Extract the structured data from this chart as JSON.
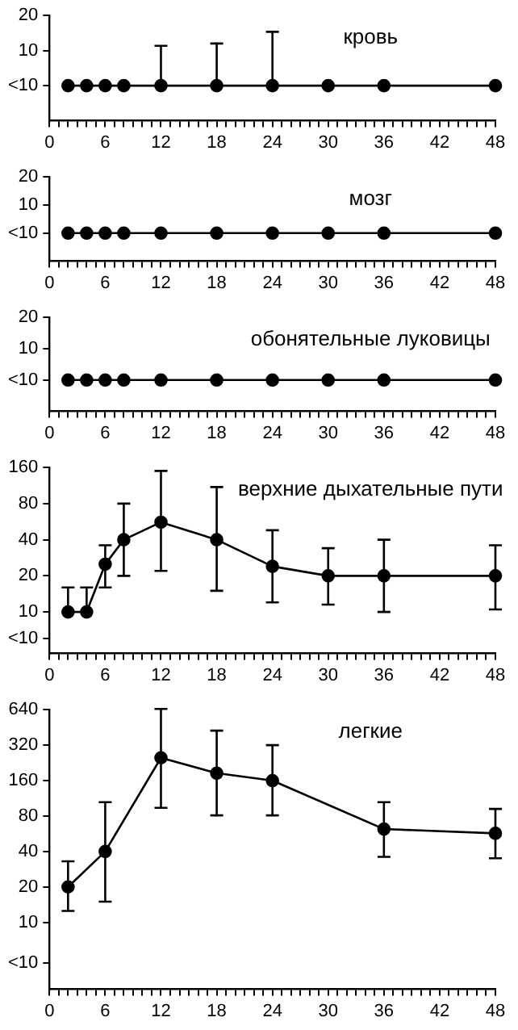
{
  "chart_data": [
    {
      "type": "line",
      "title": "кровь",
      "marker": "circle",
      "log": "y",
      "grid": false,
      "xlim": [
        0,
        48
      ],
      "ylim": [
        2.5,
        20
      ],
      "yticks": [
        {
          "value": 5,
          "label": "<10"
        },
        10,
        20
      ],
      "xticks": [
        0,
        {
          "value": 1,
          "label": null
        },
        {
          "value": 2,
          "label": null
        },
        {
          "value": 3,
          "label": null
        },
        {
          "value": 4,
          "label": null
        },
        {
          "value": 5,
          "label": null
        },
        6,
        {
          "value": 7,
          "label": null
        },
        {
          "value": 8,
          "label": null
        },
        {
          "value": 9,
          "label": null
        },
        {
          "value": 10,
          "label": null
        },
        {
          "value": 11,
          "label": null
        },
        12,
        {
          "value": 13,
          "label": null
        },
        {
          "value": 14,
          "label": null
        },
        {
          "value": 15,
          "label": null
        },
        {
          "value": 16,
          "label": null
        },
        {
          "value": 17,
          "label": null
        },
        18,
        {
          "value": 19,
          "label": null
        },
        {
          "value": 20,
          "label": null
        },
        {
          "value": 21,
          "label": null
        },
        {
          "value": 22,
          "label": null
        },
        {
          "value": 23,
          "label": null
        },
        24,
        {
          "value": 25,
          "label": null
        },
        {
          "value": 26,
          "label": null
        },
        {
          "value": 27,
          "label": null
        },
        {
          "value": 28,
          "label": null
        },
        {
          "value": 29,
          "label": null
        },
        30,
        {
          "value": 31,
          "label": null
        },
        {
          "value": 32,
          "label": null
        },
        {
          "value": 33,
          "label": null
        },
        {
          "value": 34,
          "label": null
        },
        {
          "value": 35,
          "label": null
        },
        36,
        {
          "value": 37,
          "label": null
        },
        {
          "value": 38,
          "label": null
        },
        {
          "value": 39,
          "label": null
        },
        {
          "value": 40,
          "label": null
        },
        {
          "value": 41,
          "label": null
        },
        42,
        {
          "value": 43,
          "label": null
        },
        {
          "value": 44,
          "label": null
        },
        {
          "value": 45,
          "label": null
        },
        {
          "value": 46,
          "label": null
        },
        {
          "value": 47,
          "label": null
        },
        48
      ],
      "x": [
        2,
        4,
        6,
        8,
        12,
        18,
        24,
        30,
        36,
        48
      ],
      "series": [
        {
          "color": "#000000",
          "values": [
            5,
            5,
            5,
            5,
            5,
            5,
            5,
            5,
            5,
            5
          ],
          "errors": [
            null,
            null,
            null,
            null,
            [
              5,
              11
            ],
            [
              5,
              11.5
            ],
            [
              5,
              14.5
            ],
            null,
            null,
            null
          ]
        }
      ]
    },
    {
      "type": "line",
      "title": "мозг",
      "marker": "circle",
      "log": "y",
      "grid": false,
      "xlim": [
        0,
        48
      ],
      "ylim": [
        2.5,
        20
      ],
      "yticks": [
        {
          "value": 5,
          "label": "<10"
        },
        10,
        20
      ],
      "xticks": [
        0,
        {
          "value": 1,
          "label": null
        },
        {
          "value": 2,
          "label": null
        },
        {
          "value": 3,
          "label": null
        },
        {
          "value": 4,
          "label": null
        },
        {
          "value": 5,
          "label": null
        },
        6,
        {
          "value": 7,
          "label": null
        },
        {
          "value": 8,
          "label": null
        },
        {
          "value": 9,
          "label": null
        },
        {
          "value": 10,
          "label": null
        },
        {
          "value": 11,
          "label": null
        },
        12,
        {
          "value": 13,
          "label": null
        },
        {
          "value": 14,
          "label": null
        },
        {
          "value": 15,
          "label": null
        },
        {
          "value": 16,
          "label": null
        },
        {
          "value": 17,
          "label": null
        },
        18,
        {
          "value": 19,
          "label": null
        },
        {
          "value": 20,
          "label": null
        },
        {
          "value": 21,
          "label": null
        },
        {
          "value": 22,
          "label": null
        },
        {
          "value": 23,
          "label": null
        },
        24,
        {
          "value": 25,
          "label": null
        },
        {
          "value": 26,
          "label": null
        },
        {
          "value": 27,
          "label": null
        },
        {
          "value": 28,
          "label": null
        },
        {
          "value": 29,
          "label": null
        },
        30,
        {
          "value": 31,
          "label": null
        },
        {
          "value": 32,
          "label": null
        },
        {
          "value": 33,
          "label": null
        },
        {
          "value": 34,
          "label": null
        },
        {
          "value": 35,
          "label": null
        },
        36,
        {
          "value": 37,
          "label": null
        },
        {
          "value": 38,
          "label": null
        },
        {
          "value": 39,
          "label": null
        },
        {
          "value": 40,
          "label": null
        },
        {
          "value": 41,
          "label": null
        },
        42,
        {
          "value": 43,
          "label": null
        },
        {
          "value": 44,
          "label": null
        },
        {
          "value": 45,
          "label": null
        },
        {
          "value": 46,
          "label": null
        },
        {
          "value": 47,
          "label": null
        },
        48
      ],
      "x": [
        2,
        4,
        6,
        8,
        12,
        18,
        24,
        30,
        36,
        48
      ],
      "series": [
        {
          "color": "#000000",
          "values": [
            5,
            5,
            5,
            5,
            5,
            5,
            5,
            5,
            5,
            5
          ]
        }
      ]
    },
    {
      "type": "line",
      "title": "обонятельные луковицы",
      "marker": "circle",
      "log": "y",
      "grid": false,
      "xlim": [
        0,
        48
      ],
      "ylim": [
        2.5,
        20
      ],
      "yticks": [
        {
          "value": 5,
          "label": "<10"
        },
        10,
        20
      ],
      "xticks": [
        0,
        {
          "value": 1,
          "label": null
        },
        {
          "value": 2,
          "label": null
        },
        {
          "value": 3,
          "label": null
        },
        {
          "value": 4,
          "label": null
        },
        {
          "value": 5,
          "label": null
        },
        6,
        {
          "value": 7,
          "label": null
        },
        {
          "value": 8,
          "label": null
        },
        {
          "value": 9,
          "label": null
        },
        {
          "value": 10,
          "label": null
        },
        {
          "value": 11,
          "label": null
        },
        12,
        {
          "value": 13,
          "label": null
        },
        {
          "value": 14,
          "label": null
        },
        {
          "value": 15,
          "label": null
        },
        {
          "value": 16,
          "label": null
        },
        {
          "value": 17,
          "label": null
        },
        18,
        {
          "value": 19,
          "label": null
        },
        {
          "value": 20,
          "label": null
        },
        {
          "value": 21,
          "label": null
        },
        {
          "value": 22,
          "label": null
        },
        {
          "value": 23,
          "label": null
        },
        24,
        {
          "value": 25,
          "label": null
        },
        {
          "value": 26,
          "label": null
        },
        {
          "value": 27,
          "label": null
        },
        {
          "value": 28,
          "label": null
        },
        {
          "value": 29,
          "label": null
        },
        30,
        {
          "value": 31,
          "label": null
        },
        {
          "value": 32,
          "label": null
        },
        {
          "value": 33,
          "label": null
        },
        {
          "value": 34,
          "label": null
        },
        {
          "value": 35,
          "label": null
        },
        36,
        {
          "value": 37,
          "label": null
        },
        {
          "value": 38,
          "label": null
        },
        {
          "value": 39,
          "label": null
        },
        {
          "value": 40,
          "label": null
        },
        {
          "value": 41,
          "label": null
        },
        42,
        {
          "value": 43,
          "label": null
        },
        {
          "value": 44,
          "label": null
        },
        {
          "value": 45,
          "label": null
        },
        {
          "value": 46,
          "label": null
        },
        {
          "value": 47,
          "label": null
        },
        48
      ],
      "x": [
        2,
        4,
        6,
        8,
        12,
        18,
        24,
        30,
        36,
        48
      ],
      "series": [
        {
          "color": "#000000",
          "values": [
            5,
            5,
            5,
            5,
            5,
            5,
            5,
            5,
            5,
            5
          ]
        }
      ]
    },
    {
      "type": "line",
      "title": "верхние дыхательные пути",
      "marker": "circle",
      "log": "y",
      "grid": false,
      "xlim": [
        0,
        48
      ],
      "ylim": [
        4.5,
        160
      ],
      "yticks": [
        {
          "value": 6,
          "label": "<10"
        },
        10,
        20,
        40,
        80,
        160
      ],
      "xticks": [
        0,
        {
          "value": 1,
          "label": null
        },
        {
          "value": 2,
          "label": null
        },
        {
          "value": 3,
          "label": null
        },
        {
          "value": 4,
          "label": null
        },
        {
          "value": 5,
          "label": null
        },
        6,
        {
          "value": 7,
          "label": null
        },
        {
          "value": 8,
          "label": null
        },
        {
          "value": 9,
          "label": null
        },
        {
          "value": 10,
          "label": null
        },
        {
          "value": 11,
          "label": null
        },
        12,
        {
          "value": 13,
          "label": null
        },
        {
          "value": 14,
          "label": null
        },
        {
          "value": 15,
          "label": null
        },
        {
          "value": 16,
          "label": null
        },
        {
          "value": 17,
          "label": null
        },
        18,
        {
          "value": 19,
          "label": null
        },
        {
          "value": 20,
          "label": null
        },
        {
          "value": 21,
          "label": null
        },
        {
          "value": 22,
          "label": null
        },
        {
          "value": 23,
          "label": null
        },
        24,
        {
          "value": 25,
          "label": null
        },
        {
          "value": 26,
          "label": null
        },
        {
          "value": 27,
          "label": null
        },
        {
          "value": 28,
          "label": null
        },
        {
          "value": 29,
          "label": null
        },
        30,
        {
          "value": 31,
          "label": null
        },
        {
          "value": 32,
          "label": null
        },
        {
          "value": 33,
          "label": null
        },
        {
          "value": 34,
          "label": null
        },
        {
          "value": 35,
          "label": null
        },
        36,
        {
          "value": 37,
          "label": null
        },
        {
          "value": 38,
          "label": null
        },
        {
          "value": 39,
          "label": null
        },
        {
          "value": 40,
          "label": null
        },
        {
          "value": 41,
          "label": null
        },
        42,
        {
          "value": 43,
          "label": null
        },
        {
          "value": 44,
          "label": null
        },
        {
          "value": 45,
          "label": null
        },
        {
          "value": 46,
          "label": null
        },
        {
          "value": 47,
          "label": null
        },
        48
      ],
      "x": [
        2,
        4,
        6,
        8,
        12,
        18,
        24,
        30,
        36,
        48
      ],
      "series": [
        {
          "color": "#000000",
          "values": [
            10,
            10,
            25,
            40,
            56,
            40,
            24,
            20,
            20,
            20
          ],
          "errors": [
            [
              10,
              16
            ],
            [
              10,
              16
            ],
            [
              16,
              36
            ],
            [
              20,
              80
            ],
            [
              22,
              150
            ],
            [
              15,
              110
            ],
            [
              12,
              48
            ],
            [
              11.5,
              34
            ],
            [
              10,
              40
            ],
            [
              10.5,
              36
            ]
          ]
        }
      ]
    },
    {
      "type": "line",
      "title": "легкие",
      "marker": "circle",
      "log": "y",
      "grid": false,
      "xlim": [
        0,
        48
      ],
      "ylim": [
        2.7,
        640
      ],
      "yticks": [
        {
          "value": 4.5,
          "label": "<10"
        },
        10,
        20,
        40,
        80,
        160,
        320,
        640
      ],
      "xticks": [
        0,
        {
          "value": 1,
          "label": null
        },
        {
          "value": 2,
          "label": null
        },
        {
          "value": 3,
          "label": null
        },
        {
          "value": 4,
          "label": null
        },
        {
          "value": 5,
          "label": null
        },
        6,
        {
          "value": 7,
          "label": null
        },
        {
          "value": 8,
          "label": null
        },
        {
          "value": 9,
          "label": null
        },
        {
          "value": 10,
          "label": null
        },
        {
          "value": 11,
          "label": null
        },
        12,
        {
          "value": 13,
          "label": null
        },
        {
          "value": 14,
          "label": null
        },
        {
          "value": 15,
          "label": null
        },
        {
          "value": 16,
          "label": null
        },
        {
          "value": 17,
          "label": null
        },
        18,
        {
          "value": 19,
          "label": null
        },
        {
          "value": 20,
          "label": null
        },
        {
          "value": 21,
          "label": null
        },
        {
          "value": 22,
          "label": null
        },
        {
          "value": 23,
          "label": null
        },
        24,
        {
          "value": 25,
          "label": null
        },
        {
          "value": 26,
          "label": null
        },
        {
          "value": 27,
          "label": null
        },
        {
          "value": 28,
          "label": null
        },
        {
          "value": 29,
          "label": null
        },
        30,
        {
          "value": 31,
          "label": null
        },
        {
          "value": 32,
          "label": null
        },
        {
          "value": 33,
          "label": null
        },
        {
          "value": 34,
          "label": null
        },
        {
          "value": 35,
          "label": null
        },
        36,
        {
          "value": 37,
          "label": null
        },
        {
          "value": 38,
          "label": null
        },
        {
          "value": 39,
          "label": null
        },
        {
          "value": 40,
          "label": null
        },
        {
          "value": 41,
          "label": null
        },
        42,
        {
          "value": 43,
          "label": null
        },
        {
          "value": 44,
          "label": null
        },
        {
          "value": 45,
          "label": null
        },
        {
          "value": 46,
          "label": null
        },
        {
          "value": 47,
          "label": null
        },
        48
      ],
      "x": [
        2,
        6,
        12,
        18,
        24,
        36,
        48
      ],
      "series": [
        {
          "color": "#000000",
          "values": [
            20,
            40,
            250,
            185,
            160,
            62,
            57
          ],
          "errors": [
            [
              12.5,
              33
            ],
            [
              15,
              105
            ],
            [
              94,
              650
            ],
            [
              81,
              425
            ],
            [
              81,
              320
            ],
            [
              36,
              105
            ],
            [
              35,
              92
            ]
          ]
        }
      ]
    }
  ]
}
